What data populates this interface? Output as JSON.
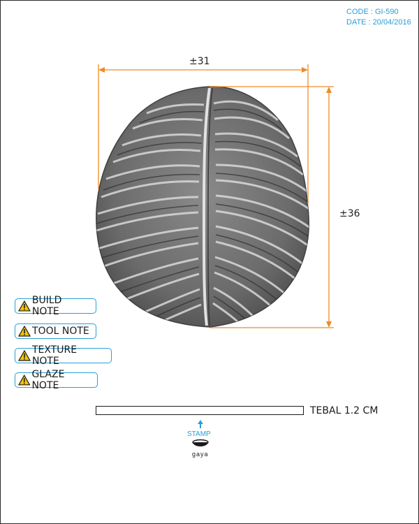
{
  "header": {
    "code": "CODE : GI-590",
    "date": "DATE : 20/04/2016"
  },
  "dimensions": {
    "width": "±31",
    "height": "±36"
  },
  "notes": [
    {
      "label": "BUILD NOTE"
    },
    {
      "label": "TOOL NOTE"
    },
    {
      "label": "TEXTURE NOTE"
    },
    {
      "label": "GLAZE NOTE"
    }
  ],
  "thickness": {
    "label": "TEBAL 1.2 CM"
  },
  "stamp": {
    "label": "STAMP",
    "brand": "gaya"
  },
  "colors": {
    "accent": "#2a9fd6",
    "dimension": "#f08a24",
    "leaf": "#6a6a6a"
  }
}
